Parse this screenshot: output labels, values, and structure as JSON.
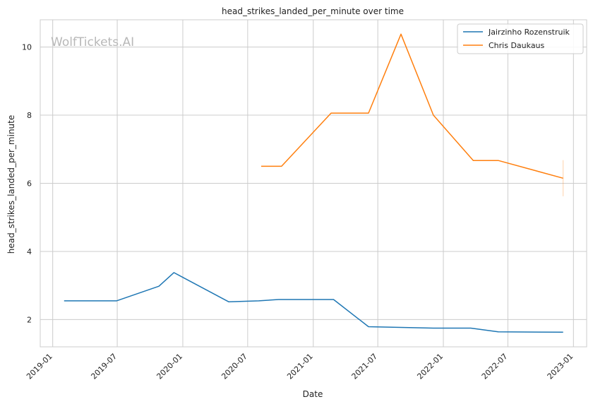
{
  "chart_data": {
    "type": "line",
    "title": "head_strikes_landed_per_minute over time",
    "xlabel": "Date",
    "ylabel": "head_strikes_landed_per_minute",
    "watermark": "WolfTickets.AI",
    "x_ticks": [
      "2019-01",
      "2019-07",
      "2020-01",
      "2020-07",
      "2021-01",
      "2021-07",
      "2022-01",
      "2022-07",
      "2023-01"
    ],
    "y_ticks": [
      2,
      4,
      6,
      8,
      10
    ],
    "xlim": [
      "2018-11-27",
      "2023-02-07"
    ],
    "ylim": [
      1.2,
      10.8
    ],
    "grid": true,
    "legend_position": "top-right",
    "series": [
      {
        "name": "Jairzinho Rozenstruik",
        "color": "#1f77b4",
        "points": [
          [
            "2019-02-02",
            2.55
          ],
          [
            "2019-06-29",
            2.55
          ],
          [
            "2019-10-26",
            2.98
          ],
          [
            "2019-12-07",
            3.38
          ],
          [
            "2020-05-09",
            2.52
          ],
          [
            "2020-08-01",
            2.55
          ],
          [
            "2020-09-26",
            2.59
          ],
          [
            "2021-02-27",
            2.59
          ],
          [
            "2021-06-05",
            1.79
          ],
          [
            "2021-12-04",
            1.75
          ],
          [
            "2022-03-19",
            1.75
          ],
          [
            "2022-06-04",
            1.64
          ],
          [
            "2022-12-03",
            1.63
          ]
        ]
      },
      {
        "name": "Chris Daukaus",
        "color": "#ff7f0e",
        "points": [
          [
            "2020-08-08",
            6.5
          ],
          [
            "2020-10-04",
            6.5
          ],
          [
            "2021-02-20",
            8.06
          ],
          [
            "2021-06-05",
            8.06
          ],
          [
            "2021-09-04",
            10.38
          ],
          [
            "2021-12-04",
            8.0
          ],
          [
            "2022-03-26",
            6.67
          ],
          [
            "2022-06-04",
            6.67
          ],
          [
            "2022-12-03",
            6.15
          ]
        ],
        "error_bar": {
          "x": "2022-12-03",
          "low": 5.62,
          "high": 6.68
        }
      }
    ]
  }
}
